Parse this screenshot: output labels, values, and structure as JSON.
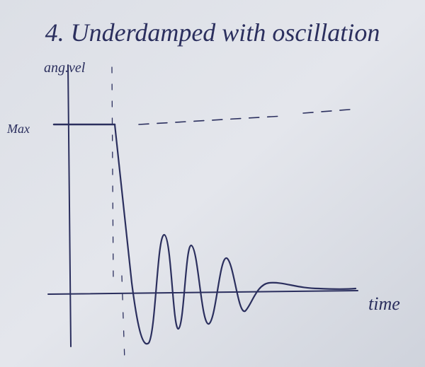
{
  "title": "4. Underdamped with oscillation",
  "axes": {
    "y_label": "ang.vel",
    "x_label": "time",
    "max_label": "Max"
  }
}
